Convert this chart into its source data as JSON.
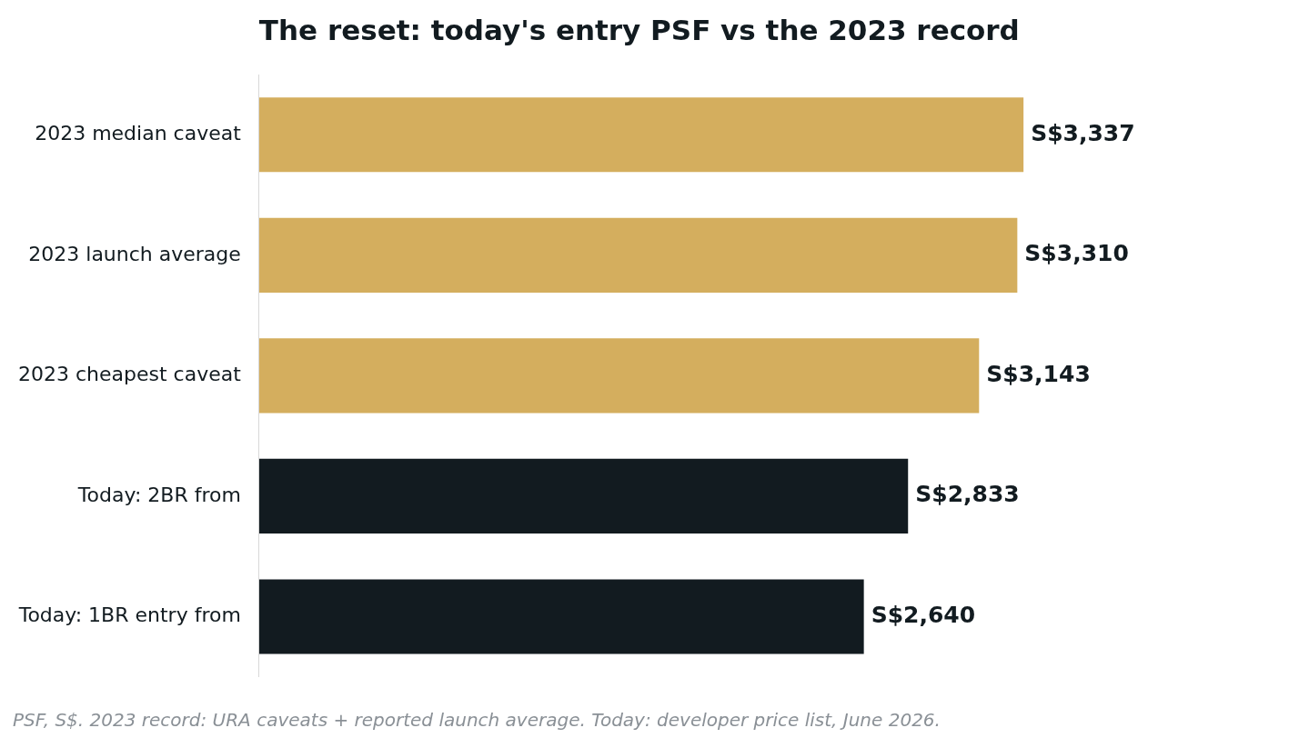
{
  "chart_data": {
    "type": "bar",
    "orientation": "horizontal",
    "title": "The reset: today's entry PSF vs the 2023 record",
    "categories": [
      "2023 median caveat",
      "2023 launch average",
      "2023 cheapest caveat",
      "Today: 2BR from",
      "Today: 1BR entry from"
    ],
    "values": [
      3337,
      3310,
      3143,
      2833,
      2640
    ],
    "colors": [
      "#d4ae5e",
      "#d4ae5e",
      "#d4ae5e",
      "#121b20",
      "#121b20"
    ],
    "value_labels": [
      "S$3,337",
      "S$3,310",
      "S$3,143",
      "S$2,833",
      "S$2,640"
    ],
    "legend": false,
    "annotations": [
      "PSF, S$. 2023 record: URA caveats + reported launch average. Today: developer price list, June 2026."
    ]
  }
}
